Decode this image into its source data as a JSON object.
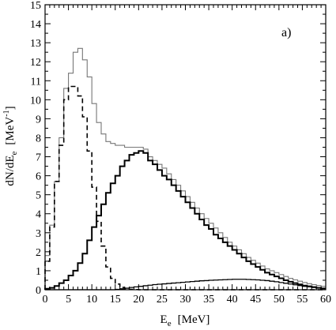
{
  "chart_data": {
    "type": "line",
    "step": true,
    "panel_label": "a)",
    "xlabel": {
      "main": "E",
      "sub": "e",
      "unit": "[MeV]"
    },
    "ylabel": {
      "main": "dN/dE",
      "sub": "e",
      "unit": "[MeV",
      "unit_sup": "-1",
      "unit_end": "]"
    },
    "xlim": [
      0,
      60
    ],
    "ylim": [
      0,
      15
    ],
    "xticks": [
      "0",
      "5",
      "10",
      "15",
      "20",
      "25",
      "30",
      "35",
      "40",
      "45",
      "50",
      "55",
      "60"
    ],
    "yticks": [
      "0",
      "1",
      "2",
      "3",
      "4",
      "5",
      "6",
      "7",
      "8",
      "9",
      "10",
      "11",
      "12",
      "13",
      "14",
      "15"
    ],
    "grid": false,
    "legend": "none",
    "bin_width": 1,
    "x": [
      0,
      1,
      2,
      3,
      4,
      5,
      6,
      7,
      8,
      9,
      10,
      11,
      12,
      13,
      14,
      15,
      16,
      17,
      18,
      19,
      20,
      21,
      22,
      23,
      24,
      25,
      26,
      27,
      28,
      29,
      30,
      31,
      32,
      33,
      34,
      35,
      36,
      37,
      38,
      39,
      40,
      41,
      42,
      43,
      44,
      45,
      46,
      47,
      48,
      49,
      50,
      51,
      52,
      53,
      54,
      55,
      56,
      57,
      58,
      59
    ],
    "series": [
      {
        "style": "thin-solid",
        "color": "#777777",
        "values": [
          1.8,
          3.4,
          5.7,
          8.0,
          10.6,
          11.4,
          12.5,
          12.7,
          12.1,
          11.2,
          9.8,
          8.8,
          8.2,
          7.8,
          7.7,
          7.6,
          7.6,
          7.5,
          7.5,
          7.5,
          7.5,
          7.4,
          7.0,
          6.8,
          6.6,
          6.4,
          6.1,
          5.8,
          5.5,
          5.2,
          4.9,
          4.6,
          4.3,
          4.0,
          3.75,
          3.5,
          3.25,
          3.0,
          2.75,
          2.5,
          2.3,
          2.1,
          1.9,
          1.7,
          1.55,
          1.4,
          1.25,
          1.1,
          1.0,
          0.9,
          0.8,
          0.7,
          0.6,
          0.52,
          0.45,
          0.38,
          0.32,
          0.27,
          0.22,
          0.18
        ]
      },
      {
        "style": "dashed",
        "color": "#000000",
        "values": [
          1.5,
          3.3,
          5.7,
          7.6,
          10.0,
          10.7,
          10.7,
          10.2,
          9.1,
          7.3,
          5.4,
          3.6,
          2.3,
          1.2,
          0.6,
          0.3,
          0.12,
          0.05,
          0.02,
          0.01,
          0,
          0,
          0,
          0,
          0,
          0,
          0,
          0,
          0,
          0,
          0,
          0,
          0,
          0,
          0,
          0,
          0,
          0,
          0,
          0,
          0,
          0,
          0,
          0,
          0,
          0,
          0,
          0,
          0,
          0,
          0,
          0,
          0,
          0,
          0,
          0,
          0,
          0,
          0,
          0
        ]
      },
      {
        "style": "thick-solid",
        "color": "#000000",
        "values": [
          0.05,
          0.1,
          0.2,
          0.35,
          0.5,
          0.75,
          1.0,
          1.4,
          1.9,
          2.6,
          3.3,
          3.9,
          4.5,
          5.1,
          5.6,
          6.0,
          6.5,
          6.8,
          7.1,
          7.2,
          7.3,
          7.2,
          6.8,
          6.6,
          6.3,
          6.0,
          5.8,
          5.5,
          5.2,
          4.9,
          4.6,
          4.3,
          4.0,
          3.7,
          3.4,
          3.2,
          2.9,
          2.7,
          2.5,
          2.3,
          2.1,
          1.9,
          1.7,
          1.5,
          1.35,
          1.2,
          1.05,
          0.9,
          0.8,
          0.7,
          0.6,
          0.5,
          0.42,
          0.35,
          0.28,
          0.22,
          0.18,
          0.14,
          0.1,
          0.07
        ]
      },
      {
        "style": "thin-black",
        "color": "#000000",
        "values": [
          0,
          0,
          0,
          0,
          0,
          0,
          0,
          0,
          0,
          0,
          0,
          0,
          0,
          0,
          0,
          0.02,
          0.05,
          0.08,
          0.12,
          0.15,
          0.18,
          0.21,
          0.24,
          0.27,
          0.29,
          0.31,
          0.33,
          0.35,
          0.37,
          0.39,
          0.41,
          0.43,
          0.45,
          0.47,
          0.48,
          0.5,
          0.51,
          0.52,
          0.53,
          0.54,
          0.55,
          0.55,
          0.55,
          0.54,
          0.53,
          0.52,
          0.5,
          0.48,
          0.45,
          0.42,
          0.38,
          0.34,
          0.3,
          0.26,
          0.22,
          0.18,
          0.15,
          0.12,
          0.09,
          0.07
        ]
      }
    ]
  }
}
